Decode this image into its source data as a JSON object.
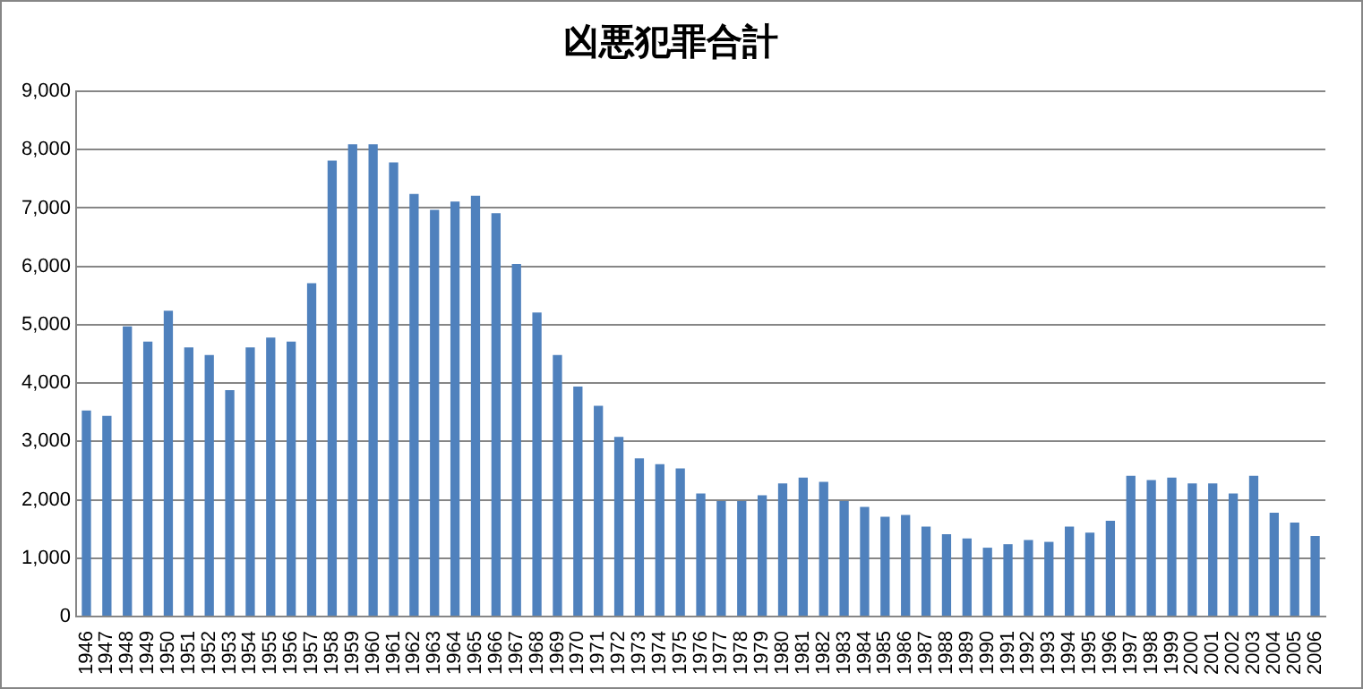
{
  "chart_data": {
    "type": "bar",
    "title": "凶悪犯罪合計",
    "categories": [
      "1946",
      "1947",
      "1948",
      "1949",
      "1950",
      "1951",
      "1952",
      "1953",
      "1954",
      "1955",
      "1956",
      "1957",
      "1958",
      "1959",
      "1960",
      "1961",
      "1962",
      "1963",
      "1964",
      "1965",
      "1966",
      "1967",
      "1968",
      "1969",
      "1970",
      "1971",
      "1972",
      "1973",
      "1974",
      "1975",
      "1976",
      "1977",
      "1978",
      "1979",
      "1980",
      "1981",
      "1982",
      "1983",
      "1984",
      "1985",
      "1986",
      "1987",
      "1988",
      "1989",
      "1990",
      "1991",
      "1992",
      "1993",
      "1994",
      "1995",
      "1996",
      "1997",
      "1998",
      "1999",
      "2000",
      "2001",
      "2002",
      "2003",
      "2004",
      "2005",
      "2006"
    ],
    "values": [
      3530,
      3440,
      4970,
      4710,
      5240,
      4610,
      4480,
      3880,
      4610,
      4780,
      4710,
      5710,
      7810,
      8090,
      8090,
      7780,
      7240,
      6970,
      7110,
      7210,
      6910,
      6040,
      5210,
      4480,
      3940,
      3610,
      3080,
      2710,
      2610,
      2540,
      2110,
      1980,
      1980,
      2080,
      2280,
      2380,
      2310,
      1980,
      1880,
      1710,
      1740,
      1540,
      1410,
      1340,
      1180,
      1240,
      1310,
      1280,
      1540,
      1440,
      1640,
      2410,
      2340,
      2380,
      2280,
      2280,
      2110,
      2410,
      1780,
      1610,
      1380
    ],
    "color": "#4f81bd",
    "ylim": [
      0,
      9000
    ],
    "yticks": [
      {
        "value": 0,
        "label": "0"
      },
      {
        "value": 1000,
        "label": "1,000"
      },
      {
        "value": 2000,
        "label": "2,000"
      },
      {
        "value": 3000,
        "label": "3,000"
      },
      {
        "value": 4000,
        "label": "4,000"
      },
      {
        "value": 5000,
        "label": "5,000"
      },
      {
        "value": 6000,
        "label": "6,000"
      },
      {
        "value": 7000,
        "label": "7,000"
      },
      {
        "value": 8000,
        "label": "8,000"
      },
      {
        "value": 9000,
        "label": "9,000"
      }
    ],
    "grid": "y",
    "legend": false
  }
}
